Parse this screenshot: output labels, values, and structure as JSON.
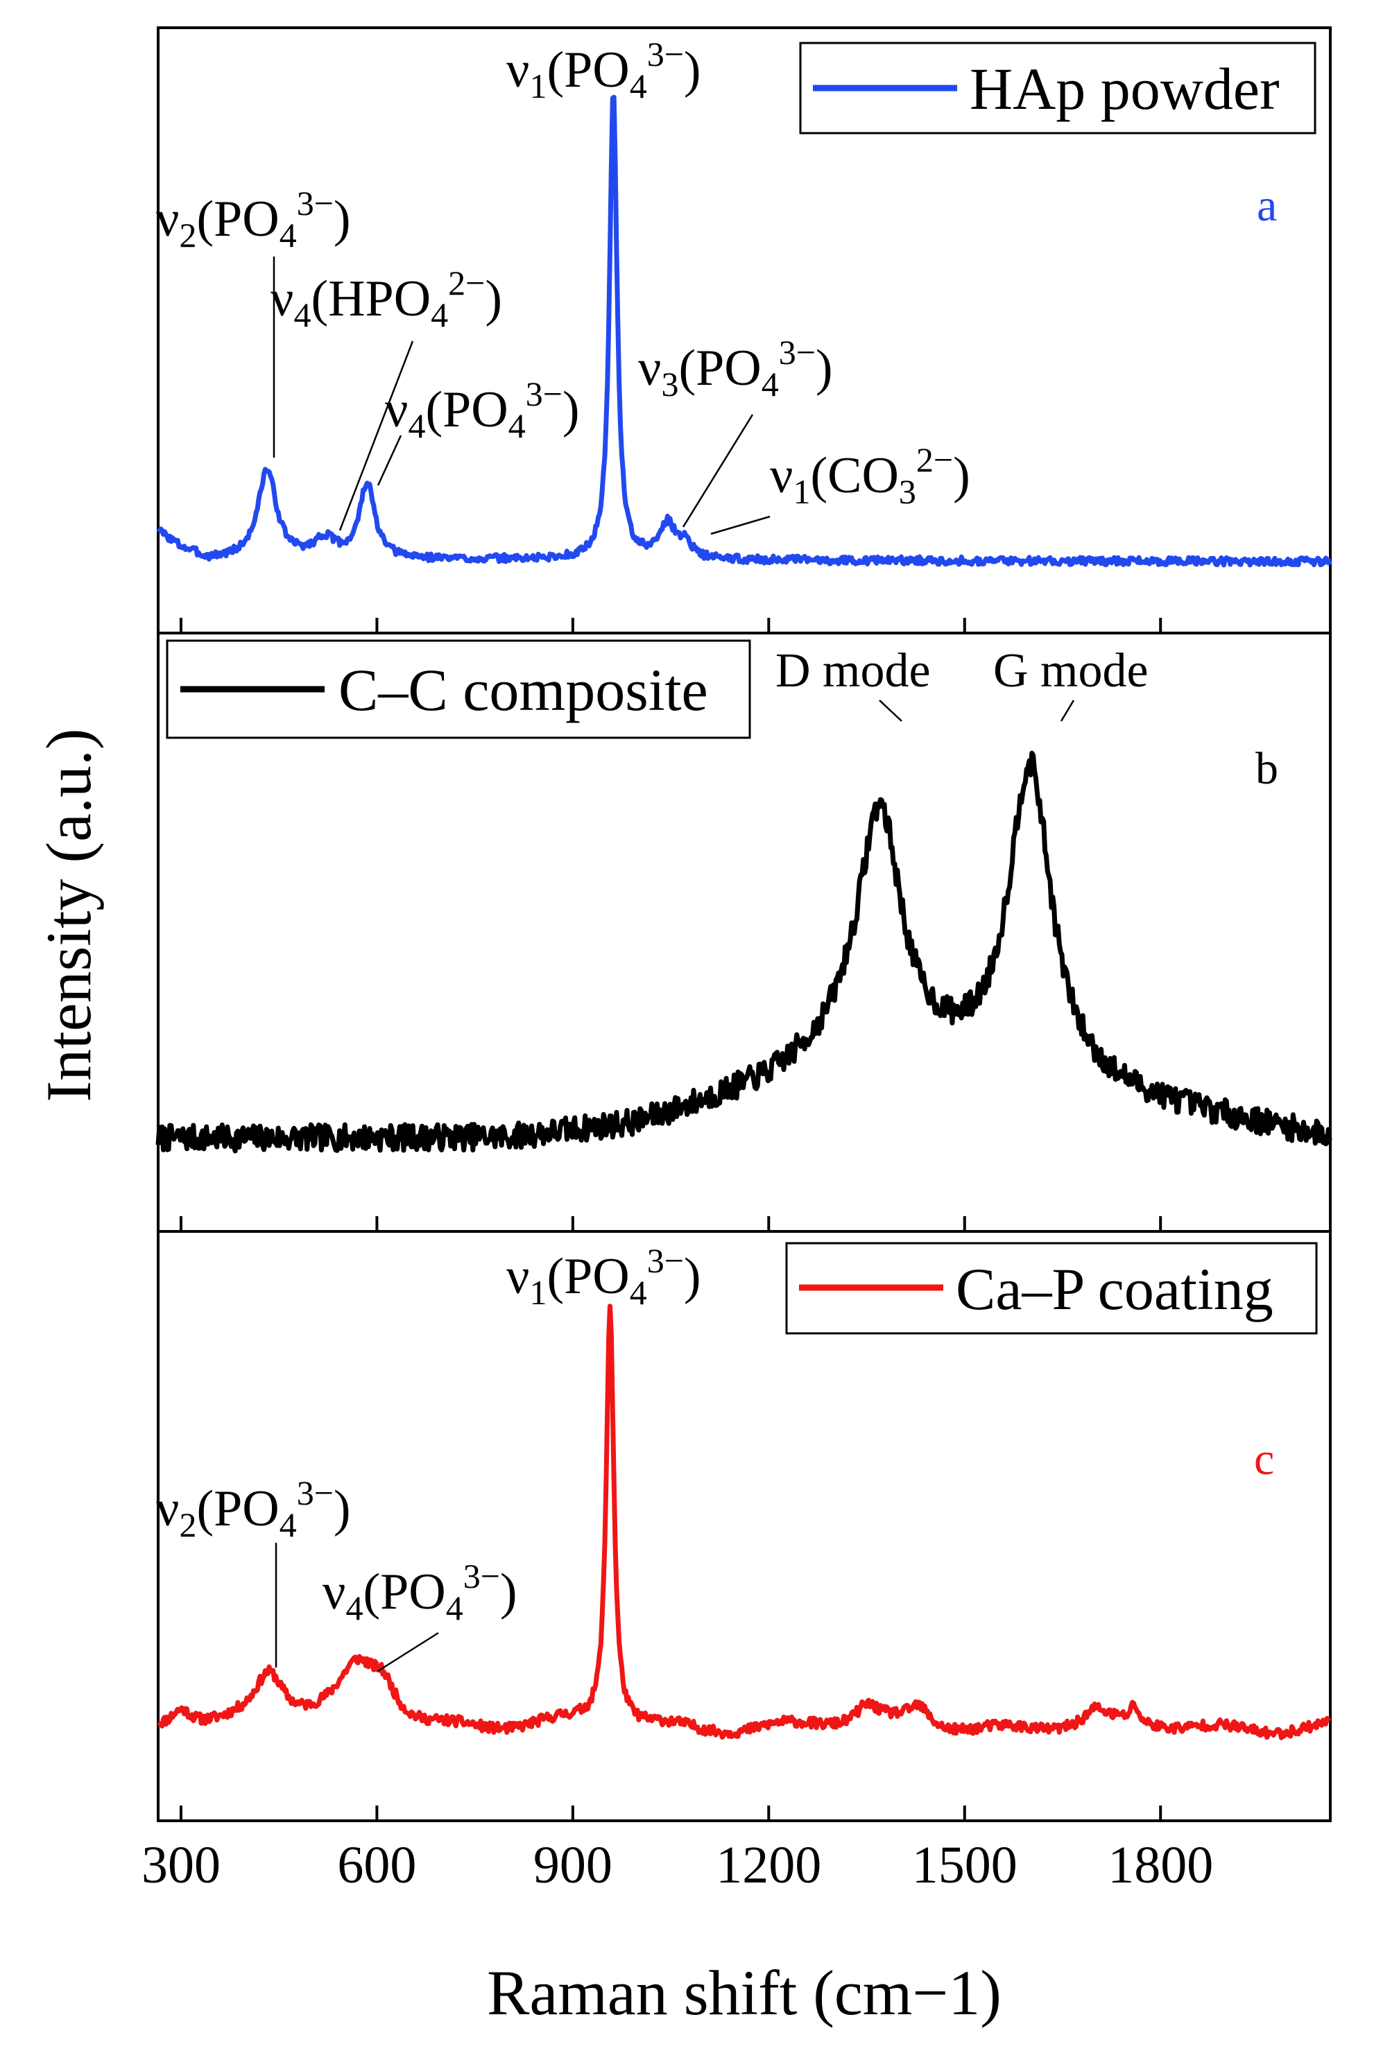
{
  "chart_data": {
    "type": "line",
    "xlabel": "Raman shift (cm−1)",
    "ylabel": "Intensity (a.u.)",
    "xlim": [
      265,
      2060
    ],
    "xticks": [
      300,
      600,
      900,
      1200,
      1500,
      1800
    ],
    "xtick_labels": [
      "300",
      "600",
      "900",
      "1200",
      "1500",
      "1800"
    ],
    "colors": {
      "a": "#2249f0",
      "b": "#000000",
      "c": "#f01616"
    },
    "panels": [
      {
        "id": "a",
        "letter": "a",
        "legend": "HAp powder",
        "ylim": [
          0,
          1
        ],
        "noise": 0.008,
        "seed": 3,
        "baseline": [
          [
            265,
            0.08
          ],
          [
            300,
            0.045
          ],
          [
            340,
            0.02
          ],
          [
            2060,
            0.015
          ]
        ],
        "peaks": [
          {
            "x": 432,
            "h": 0.19,
            "w": 17
          },
          {
            "x": 520,
            "h": 0.04,
            "w": 20
          },
          {
            "x": 585,
            "h": 0.16,
            "w": 14
          },
          {
            "x": 962,
            "h": 1.0,
            "w": 7
          },
          {
            "x": 1045,
            "h": 0.075,
            "w": 15
          },
          {
            "x": 1073,
            "h": 0.035,
            "w": 10
          }
        ],
        "annotations": [
          {
            "base": "ν",
            "sub": "2",
            "mid": "(PO",
            "sub2": "4",
            "sup": "3−",
            "end": ")"
          },
          {
            "base": "ν",
            "sub": "4",
            "mid": "(HPO",
            "sub2": "4",
            "sup": "2−",
            "end": ")"
          },
          {
            "base": "ν",
            "sub": "4",
            "mid": "(PO",
            "sub2": "4",
            "sup": "3−",
            "end": ")"
          },
          {
            "base": "ν",
            "sub": "1",
            "mid": "(PO",
            "sub2": "4",
            "sup": "3−",
            "end": ")"
          },
          {
            "base": "ν",
            "sub": "3",
            "mid": "(PO",
            "sub2": "4",
            "sup": "3−",
            "end": ")"
          },
          {
            "base": "ν",
            "sub": "1",
            "mid": "(CO",
            "sub2": "3",
            "sup": "2−",
            "end": ")"
          }
        ]
      },
      {
        "id": "b",
        "letter": "b",
        "legend": "C–C composite",
        "ylim": [
          0,
          1
        ],
        "noise": 0.03,
        "seed": 7,
        "baseline": [
          [
            265,
            0.06
          ],
          [
            800,
            0.06
          ],
          [
            1000,
            0.09
          ],
          [
            1200,
            0.18
          ],
          [
            1320,
            0.26
          ],
          [
            2060,
            0.06
          ]
        ],
        "peaks": [
          {
            "x": 1370,
            "h": 0.56,
            "w": 40
          },
          {
            "x": 1600,
            "h": 0.72,
            "w": 40
          }
        ],
        "annotations": [
          {
            "text": "D mode"
          },
          {
            "text": "G mode"
          }
        ]
      },
      {
        "id": "c",
        "letter": "c",
        "legend": "Ca–P coating",
        "ylim": [
          0,
          1
        ],
        "noise": 0.012,
        "seed": 11,
        "baseline": [
          [
            265,
            0.05
          ],
          [
            2060,
            0.05
          ]
        ],
        "ripple": 0.018,
        "peaks": [
          {
            "x": 300,
            "h": 0.05,
            "w": 22
          },
          {
            "x": 435,
            "h": 0.12,
            "w": 28
          },
          {
            "x": 570,
            "h": 0.12,
            "w": 35
          },
          {
            "x": 610,
            "h": 0.08,
            "w": 25
          },
          {
            "x": 957,
            "h": 1.0,
            "w": 7
          },
          {
            "x": 1350,
            "h": 0.04,
            "w": 20
          },
          {
            "x": 1430,
            "h": 0.045,
            "w": 20
          },
          {
            "x": 1700,
            "h": 0.03,
            "w": 18
          },
          {
            "x": 1760,
            "h": 0.04,
            "w": 6
          }
        ],
        "annotations": [
          {
            "base": "ν",
            "sub": "2",
            "mid": "(PO",
            "sub2": "4",
            "sup": "3−",
            "end": ")"
          },
          {
            "base": "ν",
            "sub": "4",
            "mid": "(PO",
            "sub2": "4",
            "sup": "3−",
            "end": ")"
          },
          {
            "base": "ν",
            "sub": "1",
            "mid": "(PO",
            "sub2": "4",
            "sup": "3−",
            "end": ")"
          }
        ]
      }
    ]
  }
}
